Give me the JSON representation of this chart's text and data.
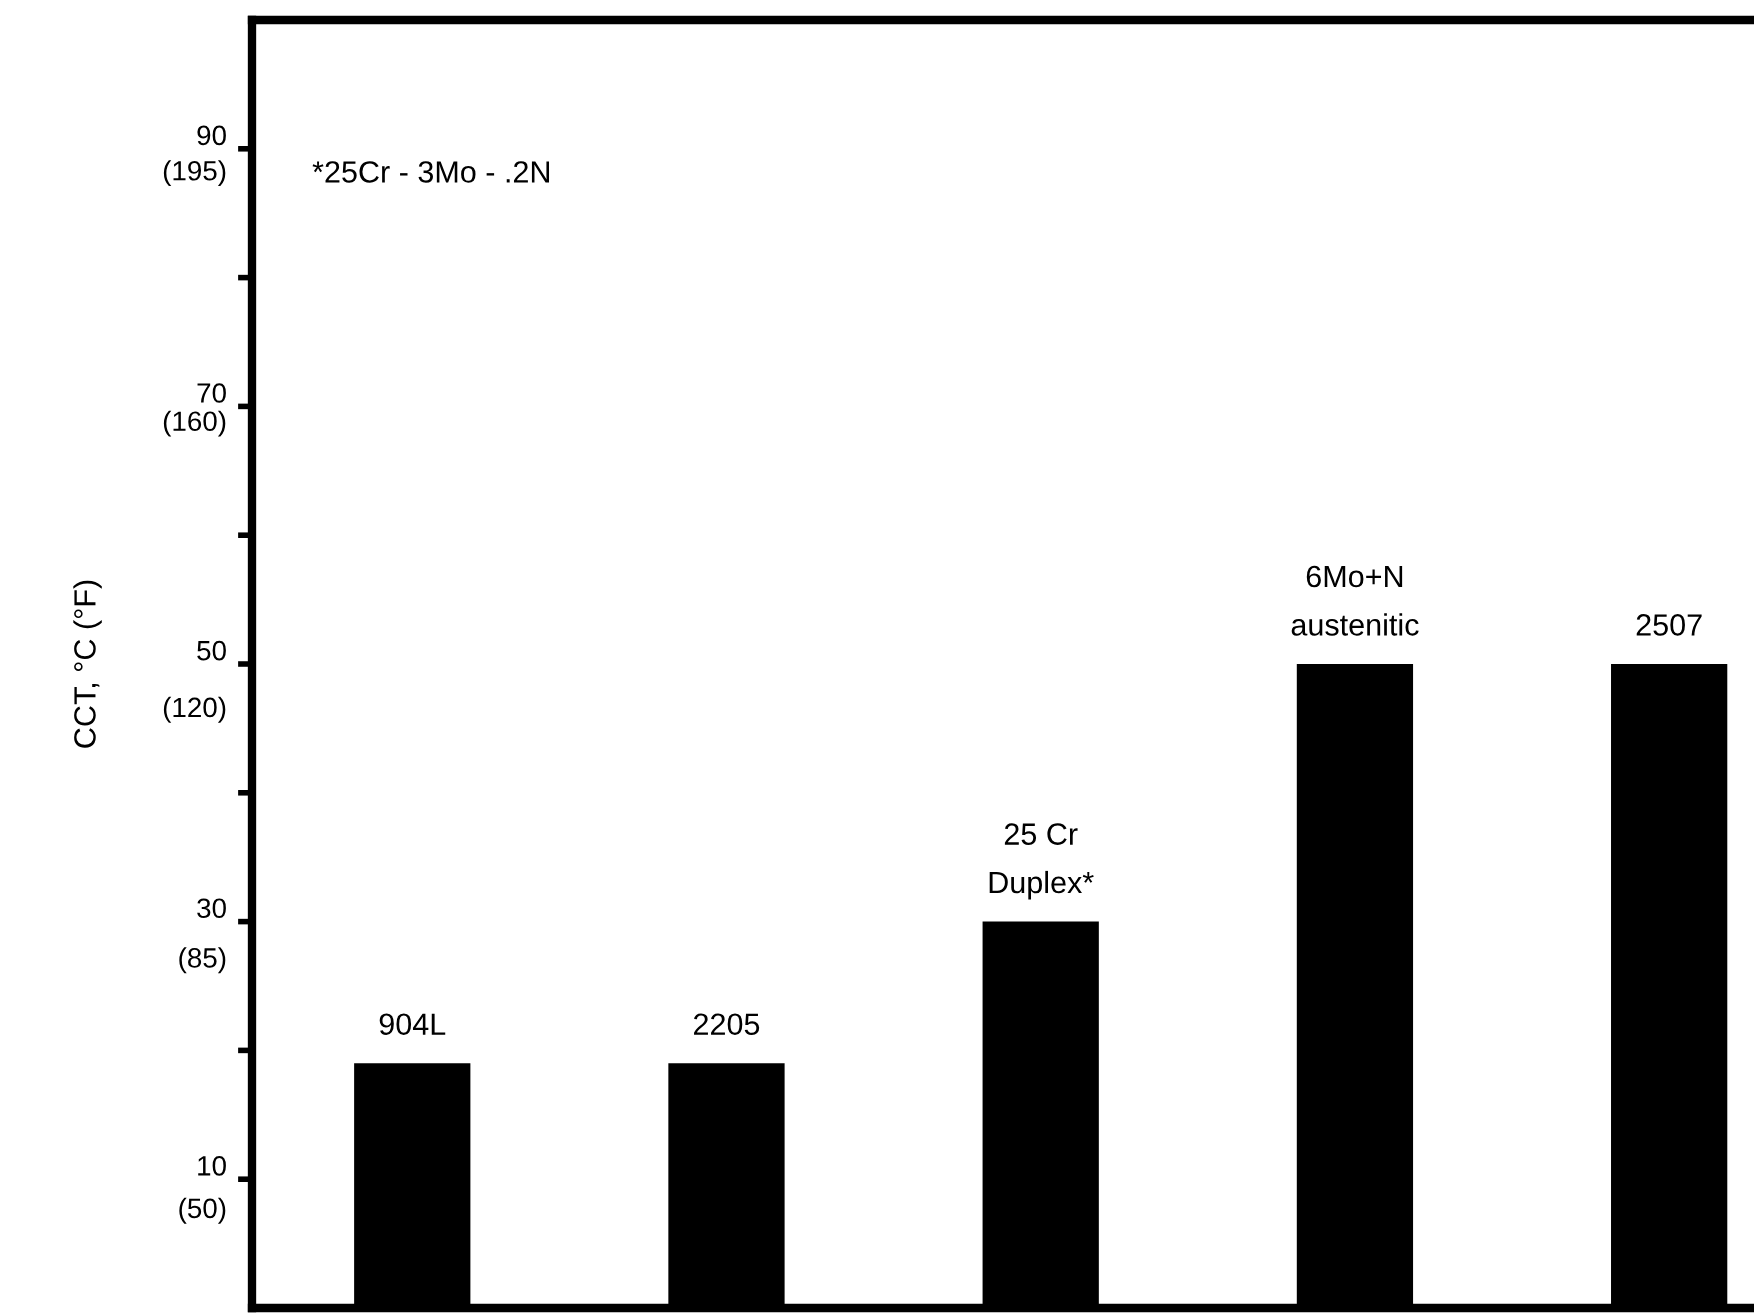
{
  "chart_data": {
    "type": "bar",
    "y2label": "CCT, °C (°F)",
    "categories": [
      "904L",
      "2205",
      "25 Cr\nDuplex*",
      "6Mo+N\naustenitic",
      "2507"
    ],
    "values": [
      19,
      19,
      30,
      50,
      50
    ],
    "color": "#000000",
    "ylim": [
      0,
      100
    ],
    "yticks": [
      10,
      {
        "value": 20,
        "label": null
      },
      30,
      {
        "value": 40,
        "label": null
      },
      50,
      {
        "value": 60,
        "label": null
      },
      70,
      {
        "value": 80,
        "label": null
      },
      90
    ],
    "y2lim": [
      36,
      216
    ],
    "y2ticks": [
      {
        "value": 50,
        "label": "(50)"
      },
      {
        "value": 85,
        "label": "(85)"
      },
      {
        "value": 120,
        "label": "(120)"
      },
      {
        "value": 160,
        "label": "(160)"
      },
      {
        "value": 195,
        "label": "(195)"
      }
    ],
    "annotations": [
      "*25Cr - 3Mo - .2N"
    ],
    "grid": false
  }
}
